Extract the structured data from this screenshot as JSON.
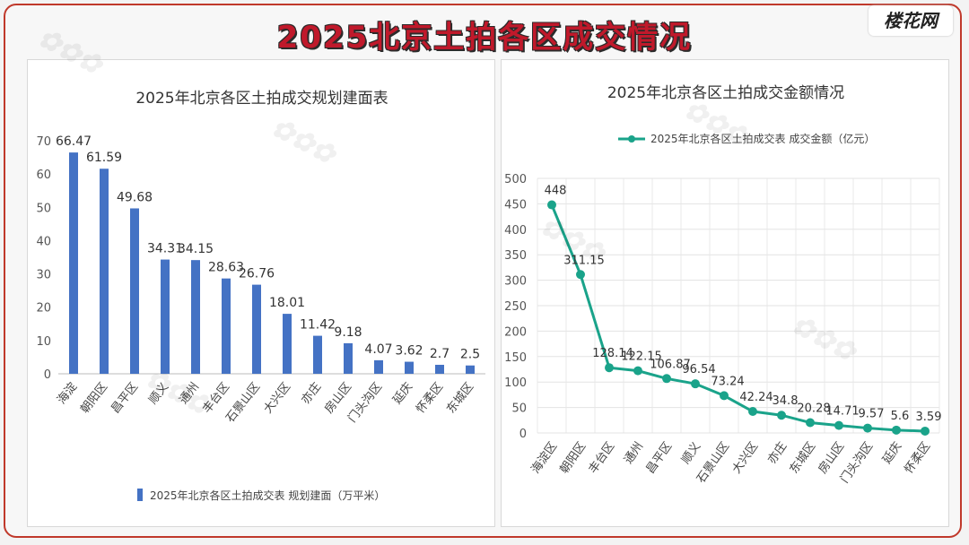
{
  "page": {
    "title": "2025北京土拍各区成交情况",
    "logo": "楼花网"
  },
  "chart_data": [
    {
      "type": "bar",
      "title": "2025年北京各区土拍成交规划建面表",
      "categories": [
        "海淀",
        "朝阳区",
        "昌平区",
        "顺义",
        "通州",
        "丰台区",
        "石景山区",
        "大兴区",
        "亦庄",
        "房山区",
        "门头沟区",
        "延庆",
        "怀柔区",
        "东城区"
      ],
      "series": [
        {
          "name": "2025年北京各区土拍成交表 规划建面（万平米）",
          "values": [
            66.47,
            61.59,
            49.68,
            34.31,
            34.15,
            28.63,
            26.76,
            18.01,
            11.42,
            9.18,
            4.07,
            3.62,
            2.7,
            2.5
          ],
          "labels": [
            "66.47",
            "61.59",
            "49.68",
            "34.31",
            "34.15",
            "28.63",
            "26.76",
            "18.01",
            "11.42",
            "9.18",
            "4.07",
            "3.62",
            "2.7",
            "2.5"
          ]
        }
      ],
      "yticks": [
        "0",
        "10",
        "20",
        "30",
        "40",
        "50",
        "60",
        "70"
      ],
      "ylim": [
        0,
        70
      ],
      "legend": "bottom",
      "grid": false,
      "color": "#4472c4"
    },
    {
      "type": "line",
      "title": "2025年北京各区土拍成交金额情况",
      "categories": [
        "海淀区",
        "朝阳区",
        "丰台区",
        "通州",
        "昌平区",
        "顺义",
        "石景山区",
        "大兴区",
        "亦庄",
        "东城区",
        "房山区",
        "门头沟区",
        "延庆",
        "怀柔区"
      ],
      "series": [
        {
          "name": "2025年北京各区土拍成交表 成交金额（亿元）",
          "values": [
            448,
            311.15,
            128.14,
            122.15,
            106.87,
            96.54,
            73.24,
            42.24,
            34.8,
            20.28,
            14.71,
            9.57,
            5.6,
            3.59
          ],
          "labels": [
            "448",
            "311.15",
            "128.14",
            "122.15",
            "106.87",
            "96.54",
            "73.24",
            "42.24",
            "34.8",
            "20.28",
            "14.71",
            "9.57",
            "5.6",
            "3.59"
          ]
        }
      ],
      "yticks": [
        "0",
        "50",
        "100",
        "150",
        "200",
        "250",
        "300",
        "350",
        "400",
        "450",
        "500"
      ],
      "ylim": [
        0,
        500
      ],
      "legend": "top",
      "grid": true,
      "color": "#1aa38a"
    }
  ]
}
